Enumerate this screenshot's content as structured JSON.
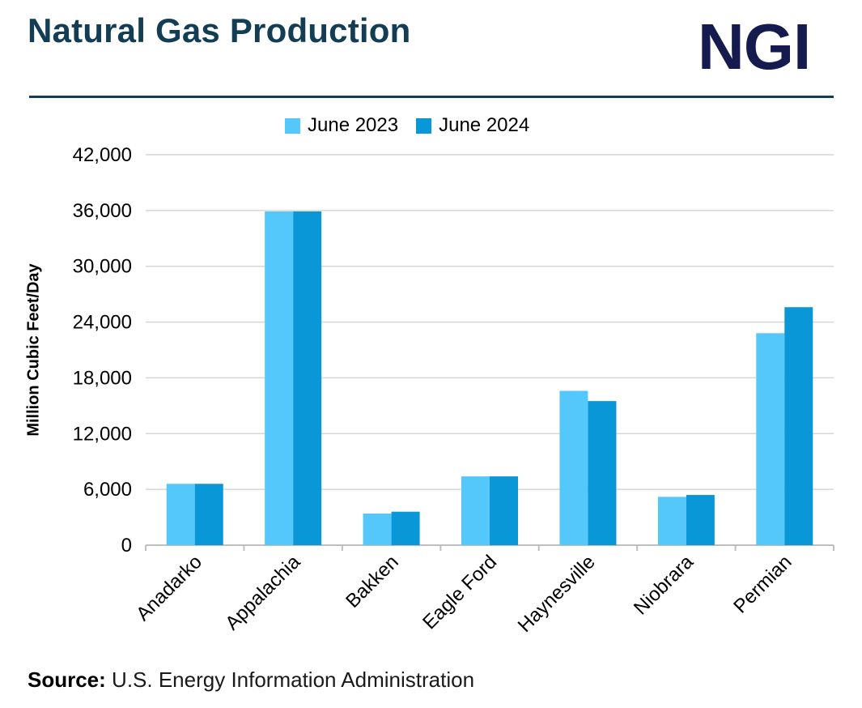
{
  "header": {
    "title": "Natural Gas Production",
    "logo_text": "NGI"
  },
  "footer": {
    "source_label": "Source:",
    "source_text": "U.S. Energy Information Administration"
  },
  "colors": {
    "title": "#123d55",
    "logo": "#151a4f",
    "rule": "#123d55",
    "grid": "#d6d6d6",
    "axis": "#bfbfbf"
  },
  "chart_data": {
    "type": "bar",
    "title": "",
    "xlabel": "",
    "ylabel": "Million Cubic Feet/Day",
    "ylim": [
      0,
      42000
    ],
    "yticks": [
      0,
      6000,
      12000,
      18000,
      24000,
      30000,
      36000,
      42000
    ],
    "ytick_labels": [
      "0",
      "6,000",
      "12,000",
      "18,000",
      "24,000",
      "30,000",
      "36,000",
      "42,000"
    ],
    "grid": "horizontal",
    "legend_position": "top-center",
    "categories": [
      "Anadarko",
      "Appalachia",
      "Bakken",
      "Eagle Ford",
      "Haynesville",
      "Niobrara",
      "Permian"
    ],
    "series": [
      {
        "name": "June 2023",
        "color": "#55c8fb",
        "values": [
          6600,
          35900,
          3400,
          7400,
          16600,
          5200,
          22800
        ]
      },
      {
        "name": "June 2024",
        "color": "#0a97d8",
        "values": [
          6600,
          35900,
          3600,
          7400,
          15500,
          5400,
          25600
        ]
      }
    ]
  }
}
